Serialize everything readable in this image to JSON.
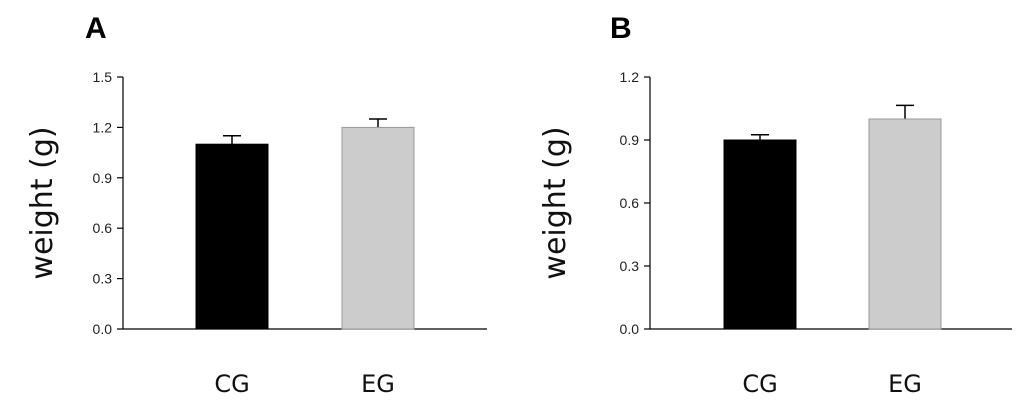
{
  "chart_data": [
    {
      "type": "bar",
      "panel_label": "A",
      "ylabel": "weight (g)",
      "ylim": [
        0,
        1.5
      ],
      "yticks": [
        "0.0",
        "0.3",
        "0.6",
        "0.9",
        "1.2",
        "1.5"
      ],
      "categories": [
        "CG",
        "EG"
      ],
      "values": [
        1.1,
        1.2
      ],
      "errors": [
        0.05,
        0.05
      ],
      "colors": [
        "#000000",
        "#cccccc"
      ]
    },
    {
      "type": "bar",
      "panel_label": "B",
      "ylabel": "weight (g)",
      "ylim": [
        0,
        1.2
      ],
      "yticks": [
        "0.0",
        "0.3",
        "0.6",
        "0.9",
        "1.2"
      ],
      "categories": [
        "CG",
        "EG"
      ],
      "values": [
        0.9,
        1.0
      ],
      "errors": [
        0.025,
        0.065
      ],
      "colors": [
        "#000000",
        "#cccccc"
      ]
    }
  ]
}
